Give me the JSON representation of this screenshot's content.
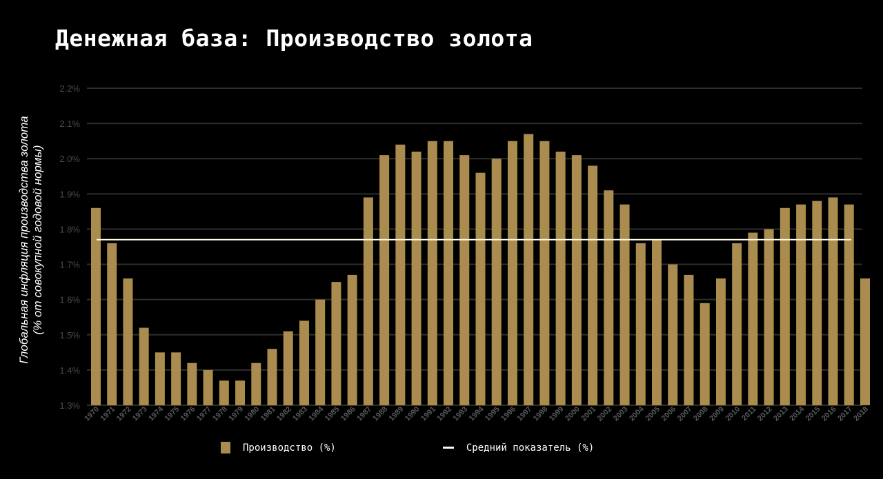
{
  "chart_data": {
    "type": "bar",
    "title": "Денежная база: Производство золота",
    "ylabel_line1": "Глобальная инфляция производства золота",
    "ylabel_line2": "(% от совокупной годовой нормы)",
    "categories": [
      "1970",
      "1971",
      "1972",
      "1973",
      "1974",
      "1975",
      "1976",
      "1977",
      "1978",
      "1979",
      "1980",
      "1981",
      "1982",
      "1983",
      "1984",
      "1985",
      "1986",
      "1987",
      "1988",
      "1989",
      "1990",
      "1991",
      "1992",
      "1993",
      "1994",
      "1995",
      "1996",
      "1997",
      "1998",
      "1999",
      "2000",
      "2001",
      "2002",
      "2003",
      "2004",
      "2005",
      "2006",
      "2007",
      "2008",
      "2009",
      "2010",
      "2011",
      "2012",
      "2013",
      "2014",
      "2015",
      "2016",
      "2017",
      "2018"
    ],
    "series": [
      {
        "name": "Производство (%)",
        "values": [
          1.86,
          1.76,
          1.66,
          1.52,
          1.45,
          1.45,
          1.42,
          1.4,
          1.37,
          1.37,
          1.42,
          1.46,
          1.51,
          1.54,
          1.6,
          1.65,
          1.67,
          1.89,
          2.01,
          2.04,
          2.02,
          2.05,
          2.05,
          2.01,
          1.96,
          2.0,
          2.05,
          2.07,
          2.05,
          2.02,
          2.01,
          1.98,
          1.91,
          1.87,
          1.76,
          1.77,
          1.7,
          1.67,
          1.59,
          1.66,
          1.76,
          1.79,
          1.8,
          1.86,
          1.87,
          1.88,
          1.89,
          1.87,
          1.66
        ]
      },
      {
        "name": "Средний показатель (%)",
        "value": 1.77
      }
    ],
    "yticks": [
      "1.3%",
      "1.4%",
      "1.5%",
      "1.6%",
      "1.7%",
      "1.8%",
      "1.9%",
      "2.0%",
      "2.1%",
      "2.2%"
    ],
    "ylim": [
      1.3,
      2.2
    ],
    "grid": true,
    "legend_position": "bottom",
    "colors": {
      "bar": "#a98c4e",
      "average_line": "#fffbe8",
      "grid": "#2e2e2e",
      "background": "#000000"
    }
  }
}
